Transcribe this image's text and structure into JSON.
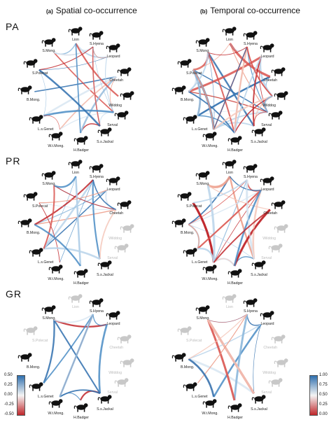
{
  "columns": [
    {
      "tag": "(a)",
      "title": "Spatial co-occurrence"
    },
    {
      "tag": "(b)",
      "title": "Temporal co-occurrence"
    }
  ],
  "rows": [
    "PA",
    "PR",
    "GR"
  ],
  "species": [
    "Lion",
    "S.Hyena",
    "Leopard",
    "Cheetah",
    "Wilddog",
    "Serval",
    "S.s.Jackal",
    "H.Badger",
    "W.t.Mong.",
    "L.s.Genet",
    "B.Mong.",
    "S.Polecat",
    "S.Mong."
  ],
  "absent": {
    "PA": [],
    "PR": [
      "Wilddog",
      "Serval"
    ],
    "GR": [
      "Lion",
      "S.Polecat",
      "Cheetah",
      "Wilddog",
      "Serval"
    ]
  },
  "colorbar_spatial": {
    "ticks": [
      "0.50",
      "0.25",
      "0.00",
      "-0.25",
      "-0.50"
    ],
    "low_color": "#c0262a",
    "mid_color": "#f4f4f4",
    "high_color": "#2f6fae"
  },
  "colorbar_temporal": {
    "ticks": [
      "1.00",
      "0.75",
      "0.50",
      "0.25",
      "0.00"
    ],
    "low_color": "#c0262a",
    "mid_color": "#f4f4f4",
    "high_color": "#2f6fae"
  }
}
